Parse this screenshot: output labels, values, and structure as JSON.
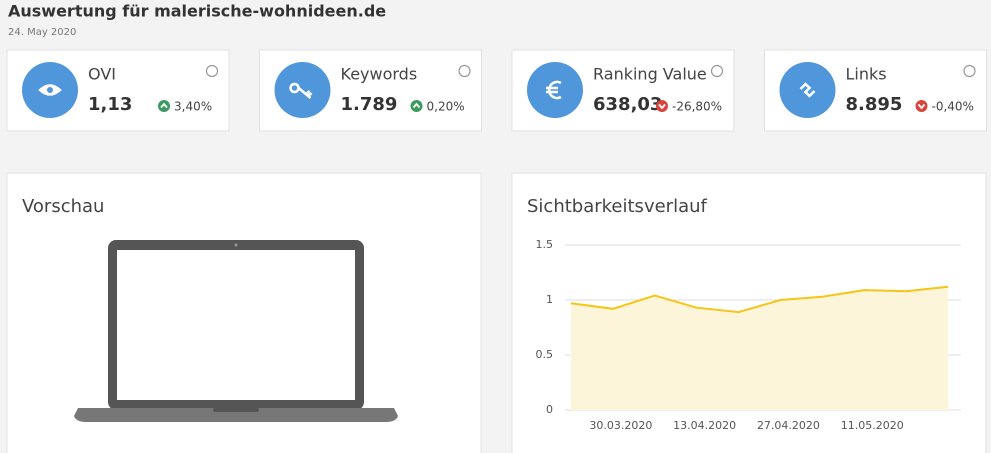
{
  "header": {
    "title": "Auswertung für malerische-wohnideen.de",
    "date": "24. May 2020"
  },
  "cards": [
    {
      "label": "OVI",
      "value": "1,13",
      "change": "3,40%",
      "direction": "up"
    },
    {
      "label": "Keywords",
      "value": "1.789",
      "change": "0,20%",
      "direction": "up"
    },
    {
      "label": "Ranking Value",
      "value": "638,03",
      "change": "-26,80%",
      "direction": "down"
    },
    {
      "label": "Links",
      "value": "8.895",
      "change": "-0,40%",
      "direction": "down"
    }
  ],
  "preview": {
    "title": "Vorschau"
  },
  "chart_data": {
    "type": "line",
    "title": "Sichtbarkeitsverlauf",
    "categories": [
      null,
      "30.03.2020",
      null,
      "13.04.2020",
      null,
      "27.04.2020",
      null,
      "11.05.2020",
      null,
      null
    ],
    "values": [
      0.97,
      0.92,
      1.04,
      0.93,
      0.89,
      1.0,
      1.03,
      1.09,
      1.08,
      1.12
    ],
    "color": "#f5c518",
    "area": true,
    "area_color": "#fdf5da",
    "ylim": [
      0,
      1.5
    ],
    "yticks": [
      0,
      0.5,
      1,
      1.5
    ],
    "grid": true
  }
}
